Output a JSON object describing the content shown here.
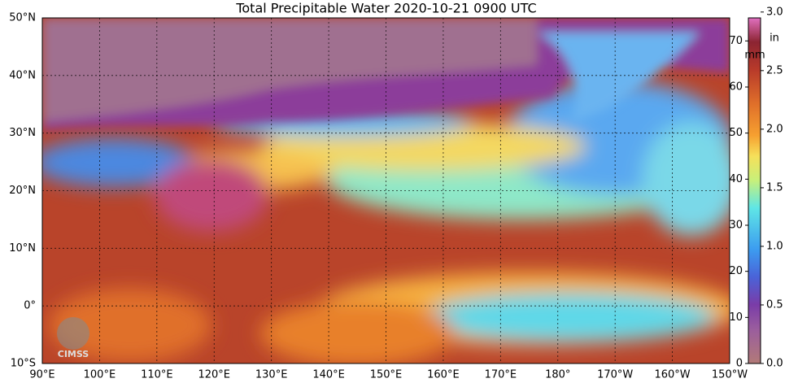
{
  "map": {
    "title": "Total Precipitable Water  2020-10-21 0900 UTC",
    "lon_range": [
      90,
      210
    ],
    "lat_range": [
      -10,
      50
    ],
    "lon_ticks": [
      {
        "value": 90,
        "label": "90°E"
      },
      {
        "value": 100,
        "label": "100°E"
      },
      {
        "value": 110,
        "label": "110°E"
      },
      {
        "value": 120,
        "label": "120°E"
      },
      {
        "value": 130,
        "label": "130°E"
      },
      {
        "value": 140,
        "label": "140°E"
      },
      {
        "value": 150,
        "label": "150°E"
      },
      {
        "value": 160,
        "label": "160°E"
      },
      {
        "value": 170,
        "label": "170°E"
      },
      {
        "value": 180,
        "label": "180°"
      },
      {
        "value": 190,
        "label": "170°W"
      },
      {
        "value": 200,
        "label": "160°W"
      },
      {
        "value": 210,
        "label": "150°W"
      }
    ],
    "lat_ticks": [
      {
        "value": -10,
        "label": "10°S"
      },
      {
        "value": 0,
        "label": "0°"
      },
      {
        "value": 10,
        "label": "10°N"
      },
      {
        "value": 20,
        "label": "20°N"
      },
      {
        "value": 30,
        "label": "30°N"
      },
      {
        "value": 40,
        "label": "40°N"
      },
      {
        "value": 50,
        "label": "50°N"
      }
    ],
    "colorbar": {
      "mm_label": "mm",
      "in_label": "in",
      "mm_lim": [
        0,
        75
      ],
      "mm_ticks": [
        0,
        10,
        20,
        30,
        40,
        50,
        60,
        70
      ],
      "in_lim": [
        0,
        2.95
      ],
      "in_ticks": [
        {
          "value": 0,
          "label": "0.0"
        },
        {
          "value": 0.5,
          "label": "0.5"
        },
        {
          "value": 1,
          "label": "1.0"
        },
        {
          "value": 1.5,
          "label": "1.5"
        },
        {
          "value": 2,
          "label": "2.0"
        },
        {
          "value": 2.5,
          "label": "2.5"
        },
        {
          "value": 3,
          "label": "3.0"
        }
      ]
    },
    "logo": "CIMSS"
  }
}
